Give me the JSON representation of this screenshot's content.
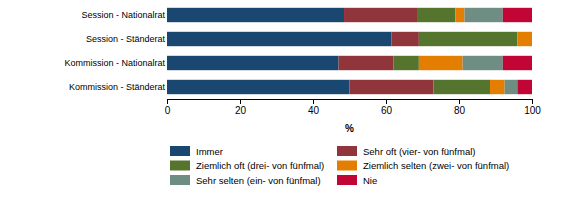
{
  "chart_data": {
    "type": "bar",
    "orientation": "horizontal",
    "stacked": true,
    "legend": "bottom",
    "x_label": "%",
    "categories": [
      "Session - Nationalrat",
      "Session - Ständerat",
      "Kommission - Nationalrat",
      "Kommission - Ständerat"
    ],
    "xlim": [
      0,
      100
    ],
    "xticks": [
      0,
      20,
      40,
      60,
      80,
      100
    ],
    "series": [
      {
        "name": "Immer",
        "color": "#1a476f",
        "values": [
          48.5,
          61.5,
          47,
          50
        ]
      },
      {
        "name": "Sehr oft (vier- von fünfmal)",
        "color": "#90353b",
        "values": [
          20,
          7.5,
          15,
          23
        ]
      },
      {
        "name": "Ziemlich oft (drei- von fünfmal)",
        "color": "#55752f",
        "values": [
          10.5,
          27,
          7,
          15.5
        ]
      },
      {
        "name": "Ziemlich selten (zwei- von fünfmal)",
        "color": "#e37e00",
        "values": [
          2.5,
          4,
          12,
          4
        ]
      },
      {
        "name": "Sehr selten (ein- von fünfmal)",
        "color": "#6e8e84",
        "values": [
          10.5,
          0,
          11,
          3.5
        ]
      },
      {
        "name": "Nie",
        "color": "#c10534",
        "values": [
          8,
          0,
          8,
          4
        ]
      }
    ]
  }
}
